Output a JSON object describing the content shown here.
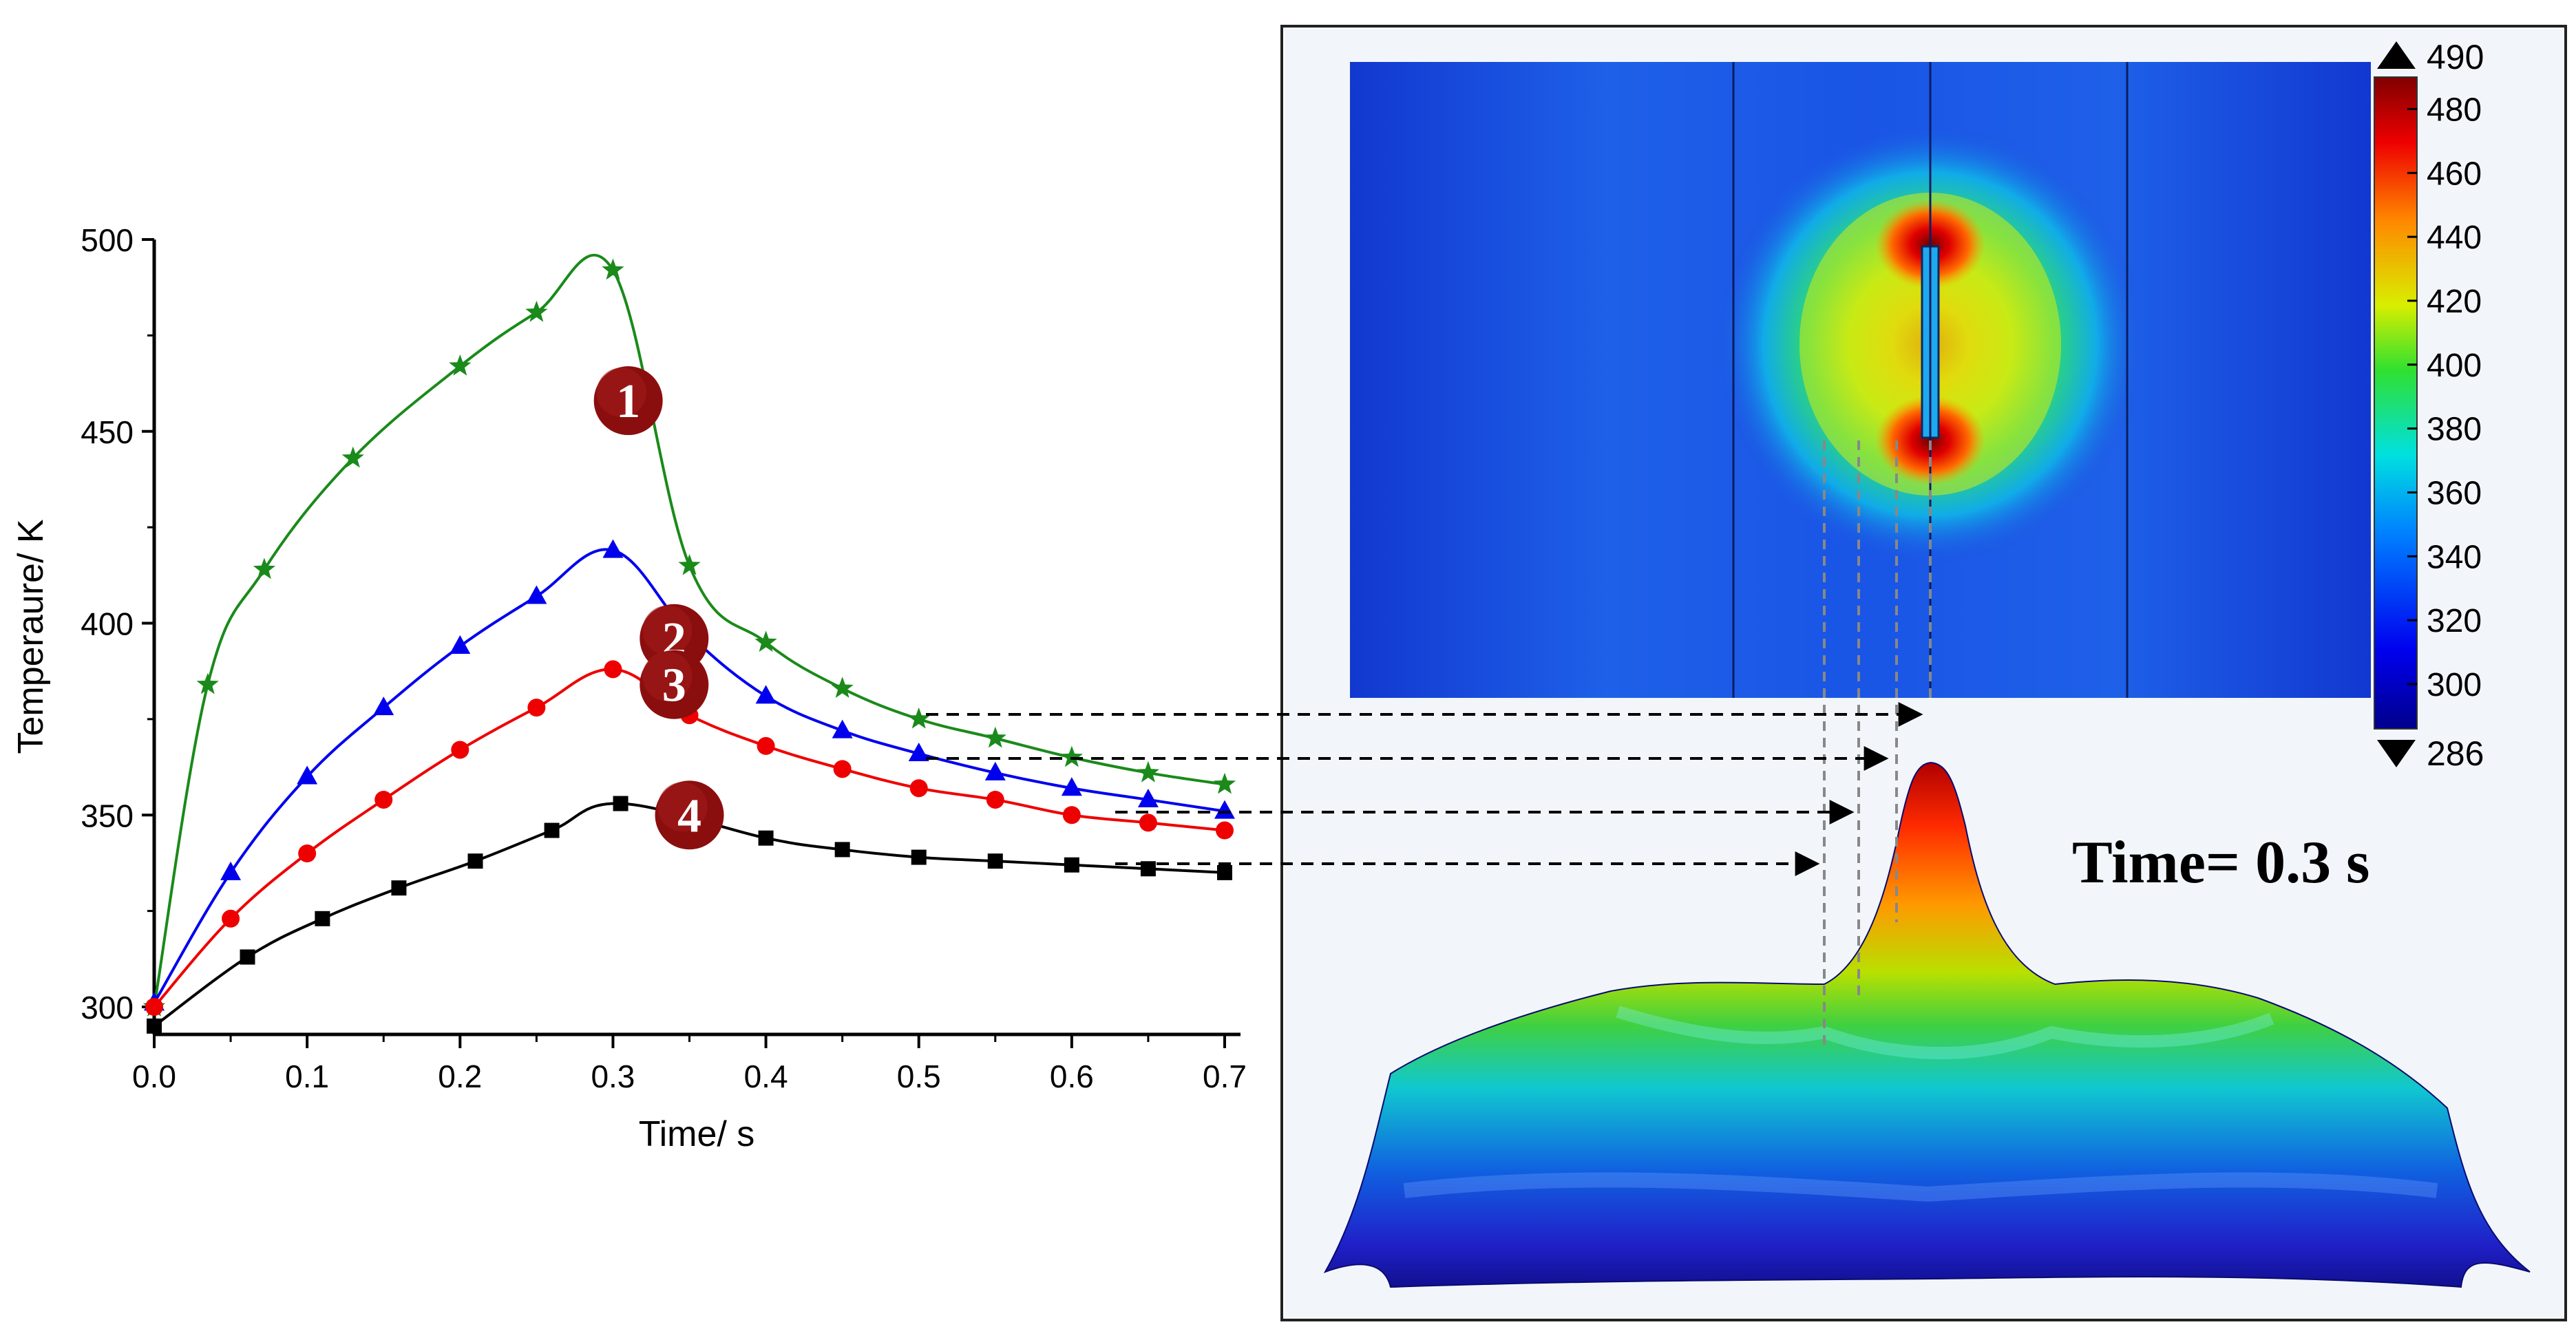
{
  "chart_data": {
    "type": "line",
    "xlabel": "Time/ s",
    "ylabel": "Temperaure/ K",
    "xlim": [
      0,
      0.7
    ],
    "ylim": [
      295,
      500
    ],
    "x_ticks": [
      0.0,
      0.1,
      0.2,
      0.3,
      0.4,
      0.5,
      0.6,
      0.7
    ],
    "x_tick_labels": [
      "0.0",
      "0.1",
      "0.2",
      "0.3",
      "0.4",
      "0.5",
      "0.6",
      "0.7"
    ],
    "y_ticks": [
      300,
      350,
      400,
      450,
      500
    ],
    "y_tick_labels": [
      "300",
      "350",
      "400",
      "450",
      "500"
    ],
    "grid": false,
    "series": [
      {
        "name": "1",
        "label": "1",
        "color": "#1a8a1a",
        "marker": "star",
        "x": [
          0.0,
          0.035,
          0.072,
          0.13,
          0.2,
          0.25,
          0.3,
          0.35,
          0.4,
          0.45,
          0.5,
          0.55,
          0.6,
          0.65,
          0.7
        ],
        "values": [
          300,
          384,
          414,
          443,
          467,
          481,
          492,
          415,
          395,
          383,
          375,
          370,
          365,
          361,
          358
        ]
      },
      {
        "name": "2",
        "label": "2",
        "color": "#0000ee",
        "marker": "triangle",
        "x": [
          0.0,
          0.05,
          0.1,
          0.15,
          0.2,
          0.25,
          0.3,
          0.35,
          0.4,
          0.45,
          0.5,
          0.55,
          0.6,
          0.65,
          0.7
        ],
        "values": [
          301,
          335,
          360,
          378,
          394,
          407,
          419,
          397,
          381,
          372,
          366,
          361,
          357,
          354,
          351
        ]
      },
      {
        "name": "3",
        "label": "3",
        "color": "#ee0000",
        "marker": "circle",
        "x": [
          0.0,
          0.05,
          0.1,
          0.15,
          0.2,
          0.25,
          0.3,
          0.35,
          0.4,
          0.45,
          0.5,
          0.55,
          0.6,
          0.65,
          0.7
        ],
        "values": [
          300,
          323,
          340,
          354,
          367,
          378,
          388,
          376,
          368,
          362,
          357,
          354,
          350,
          348,
          346
        ]
      },
      {
        "name": "4",
        "label": "4",
        "color": "#000000",
        "marker": "square",
        "x": [
          0.0,
          0.061,
          0.11,
          0.16,
          0.21,
          0.26,
          0.305,
          0.4,
          0.45,
          0.5,
          0.55,
          0.6,
          0.65,
          0.7
        ],
        "values": [
          295,
          313,
          323,
          331,
          338,
          346,
          353,
          344,
          341,
          339,
          338,
          337,
          336,
          335
        ]
      }
    ]
  },
  "simulation": {
    "time_label": "Time= 0.3 s",
    "colorbar": {
      "max_label": "490",
      "min_label": "286",
      "tick_labels": [
        "480",
        "460",
        "440",
        "420",
        "400",
        "380",
        "360",
        "340",
        "320",
        "300"
      ],
      "tick_values": [
        480,
        460,
        440,
        420,
        400,
        380,
        360,
        340,
        320,
        300
      ],
      "range": [
        286,
        490
      ]
    },
    "colors": {
      "hot": "#8b0000",
      "cold": "#00008b",
      "field_base": "#1e4fe0"
    }
  }
}
